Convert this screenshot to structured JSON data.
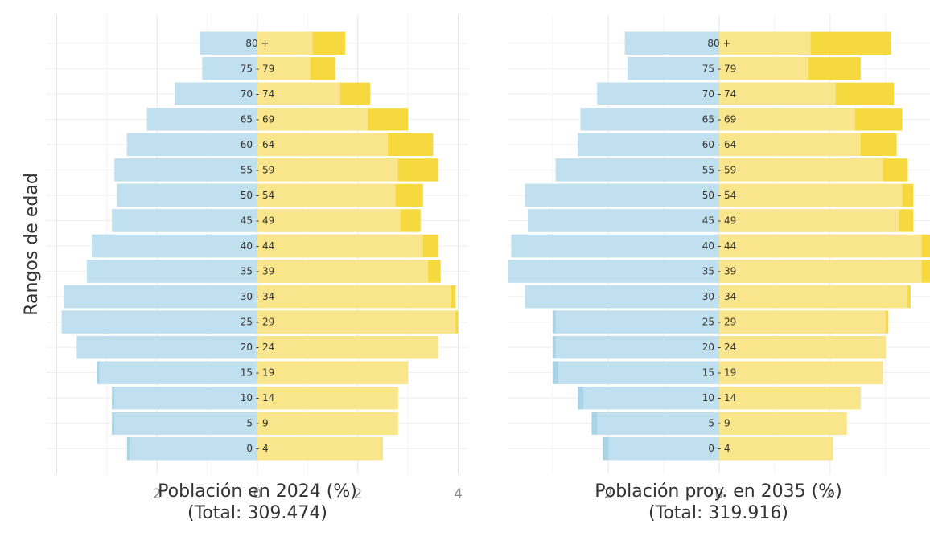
{
  "chart_data": [
    {
      "type": "bar",
      "orientation": "horizontal",
      "subtype": "population-pyramid",
      "ylabel": "Rangos de edad",
      "xlabel_line1": "Población en 2024 (%)",
      "xlabel_line2": "(Total: 309.474)",
      "categories": [
        "0 - 4",
        "5 - 9",
        "10 - 14",
        "15 - 19",
        "20 - 24",
        "25 - 29",
        "30 - 34",
        "35 - 39",
        "40 - 44",
        "45 - 49",
        "50 - 54",
        "55 - 59",
        "60 - 64",
        "65 - 69",
        "70 - 74",
        "75 - 79",
        "80 +"
      ],
      "category_display": [
        "0 - 4",
        "5 - 9",
        "10 - 14",
        "15 - 19",
        "20 - 24",
        "25 - 29",
        "30 - 34",
        "35 - 39",
        "40 - 44",
        "45 - 49",
        "50 - 54",
        "55 - 59",
        "60 - 64",
        "65 - 69",
        "70 - 74",
        "75 - 79",
        "80 +"
      ],
      "xlim": [
        -4.2,
        4.2
      ],
      "xticks": [
        -2,
        0,
        2,
        4
      ],
      "xtick_labels": [
        "2",
        "0",
        "2",
        "4"
      ],
      "grid": true,
      "series": [
        {
          "side": "left",
          "color": "#a8d4e8",
          "values": [
            2.6,
            2.9,
            2.9,
            3.2,
            3.6,
            3.9,
            3.85,
            3.4,
            3.3,
            2.9,
            2.8,
            2.85,
            2.6,
            2.2,
            1.65,
            1.1,
            1.15
          ]
        },
        {
          "side": "left",
          "color": "#c1e0ef",
          "values": [
            2.55,
            2.85,
            2.85,
            3.15,
            3.6,
            3.9,
            3.85,
            3.4,
            3.3,
            2.9,
            2.8,
            2.85,
            2.6,
            2.2,
            1.65,
            1.1,
            1.15
          ]
        },
        {
          "side": "right",
          "color": "#f6d93f",
          "values": [
            2.5,
            2.8,
            2.8,
            3.0,
            3.6,
            4.0,
            3.95,
            3.65,
            3.6,
            3.25,
            3.3,
            3.6,
            3.5,
            3.0,
            2.25,
            1.55,
            1.75
          ]
        },
        {
          "side": "right",
          "color": "#f9e58b",
          "values": [
            2.5,
            2.8,
            2.8,
            3.0,
            3.6,
            3.95,
            3.85,
            3.4,
            3.3,
            2.85,
            2.75,
            2.8,
            2.6,
            2.2,
            1.65,
            1.05,
            1.1
          ]
        }
      ]
    },
    {
      "type": "bar",
      "orientation": "horizontal",
      "subtype": "population-pyramid",
      "xlabel_line1": "Población proy. en 2035 (%)",
      "xlabel_line2": "(Total: 319.916)",
      "categories": [
        "0 - 4",
        "5 - 9",
        "10 - 14",
        "15 - 19",
        "20 - 24",
        "25 - 29",
        "30 - 34",
        "35 - 39",
        "40 - 44",
        "45 - 49",
        "50 - 54",
        "55 - 59",
        "60 - 64",
        "65 - 69",
        "70 - 74",
        "75 - 79",
        "80 +"
      ],
      "category_display": [
        "0 - 4",
        "5 - 9",
        "10 - 14",
        "15 - 19",
        "20 - 24",
        "25 - 29",
        "30 - 34",
        "35 - 39",
        "40 - 44",
        "45 - 49",
        "50 - 54",
        "55 - 59",
        "60 - 64",
        "65 - 69",
        "70 - 74",
        "75 - 79",
        "80 +"
      ],
      "xlim": [
        -3.8,
        3.8
      ],
      "xticks": [
        -2,
        0,
        2
      ],
      "xtick_labels": [
        "2",
        "0",
        "2"
      ],
      "grid": true,
      "series": [
        {
          "side": "left",
          "color": "#a8d4e8",
          "values": [
            2.1,
            2.3,
            2.55,
            3.0,
            3.0,
            3.0,
            3.5,
            3.8,
            3.75,
            3.45,
            3.5,
            2.95,
            2.55,
            2.5,
            2.2,
            1.65,
            1.7
          ]
        },
        {
          "side": "left",
          "color": "#c1e0ef",
          "values": [
            2.0,
            2.2,
            2.45,
            2.9,
            2.95,
            2.95,
            3.5,
            3.8,
            3.75,
            3.45,
            3.5,
            2.95,
            2.55,
            2.5,
            2.2,
            1.65,
            1.7
          ]
        },
        {
          "side": "right",
          "color": "#f6d93f",
          "values": [
            2.05,
            2.3,
            2.55,
            2.95,
            3.0,
            3.05,
            3.45,
            3.8,
            3.8,
            3.5,
            3.5,
            3.4,
            3.2,
            3.3,
            3.15,
            2.55,
            3.1
          ]
        },
        {
          "side": "right",
          "color": "#f9e58b",
          "values": [
            2.05,
            2.3,
            2.55,
            2.95,
            3.0,
            3.0,
            3.4,
            3.65,
            3.65,
            3.25,
            3.3,
            2.95,
            2.55,
            2.45,
            2.1,
            1.6,
            1.65
          ]
        }
      ]
    }
  ]
}
